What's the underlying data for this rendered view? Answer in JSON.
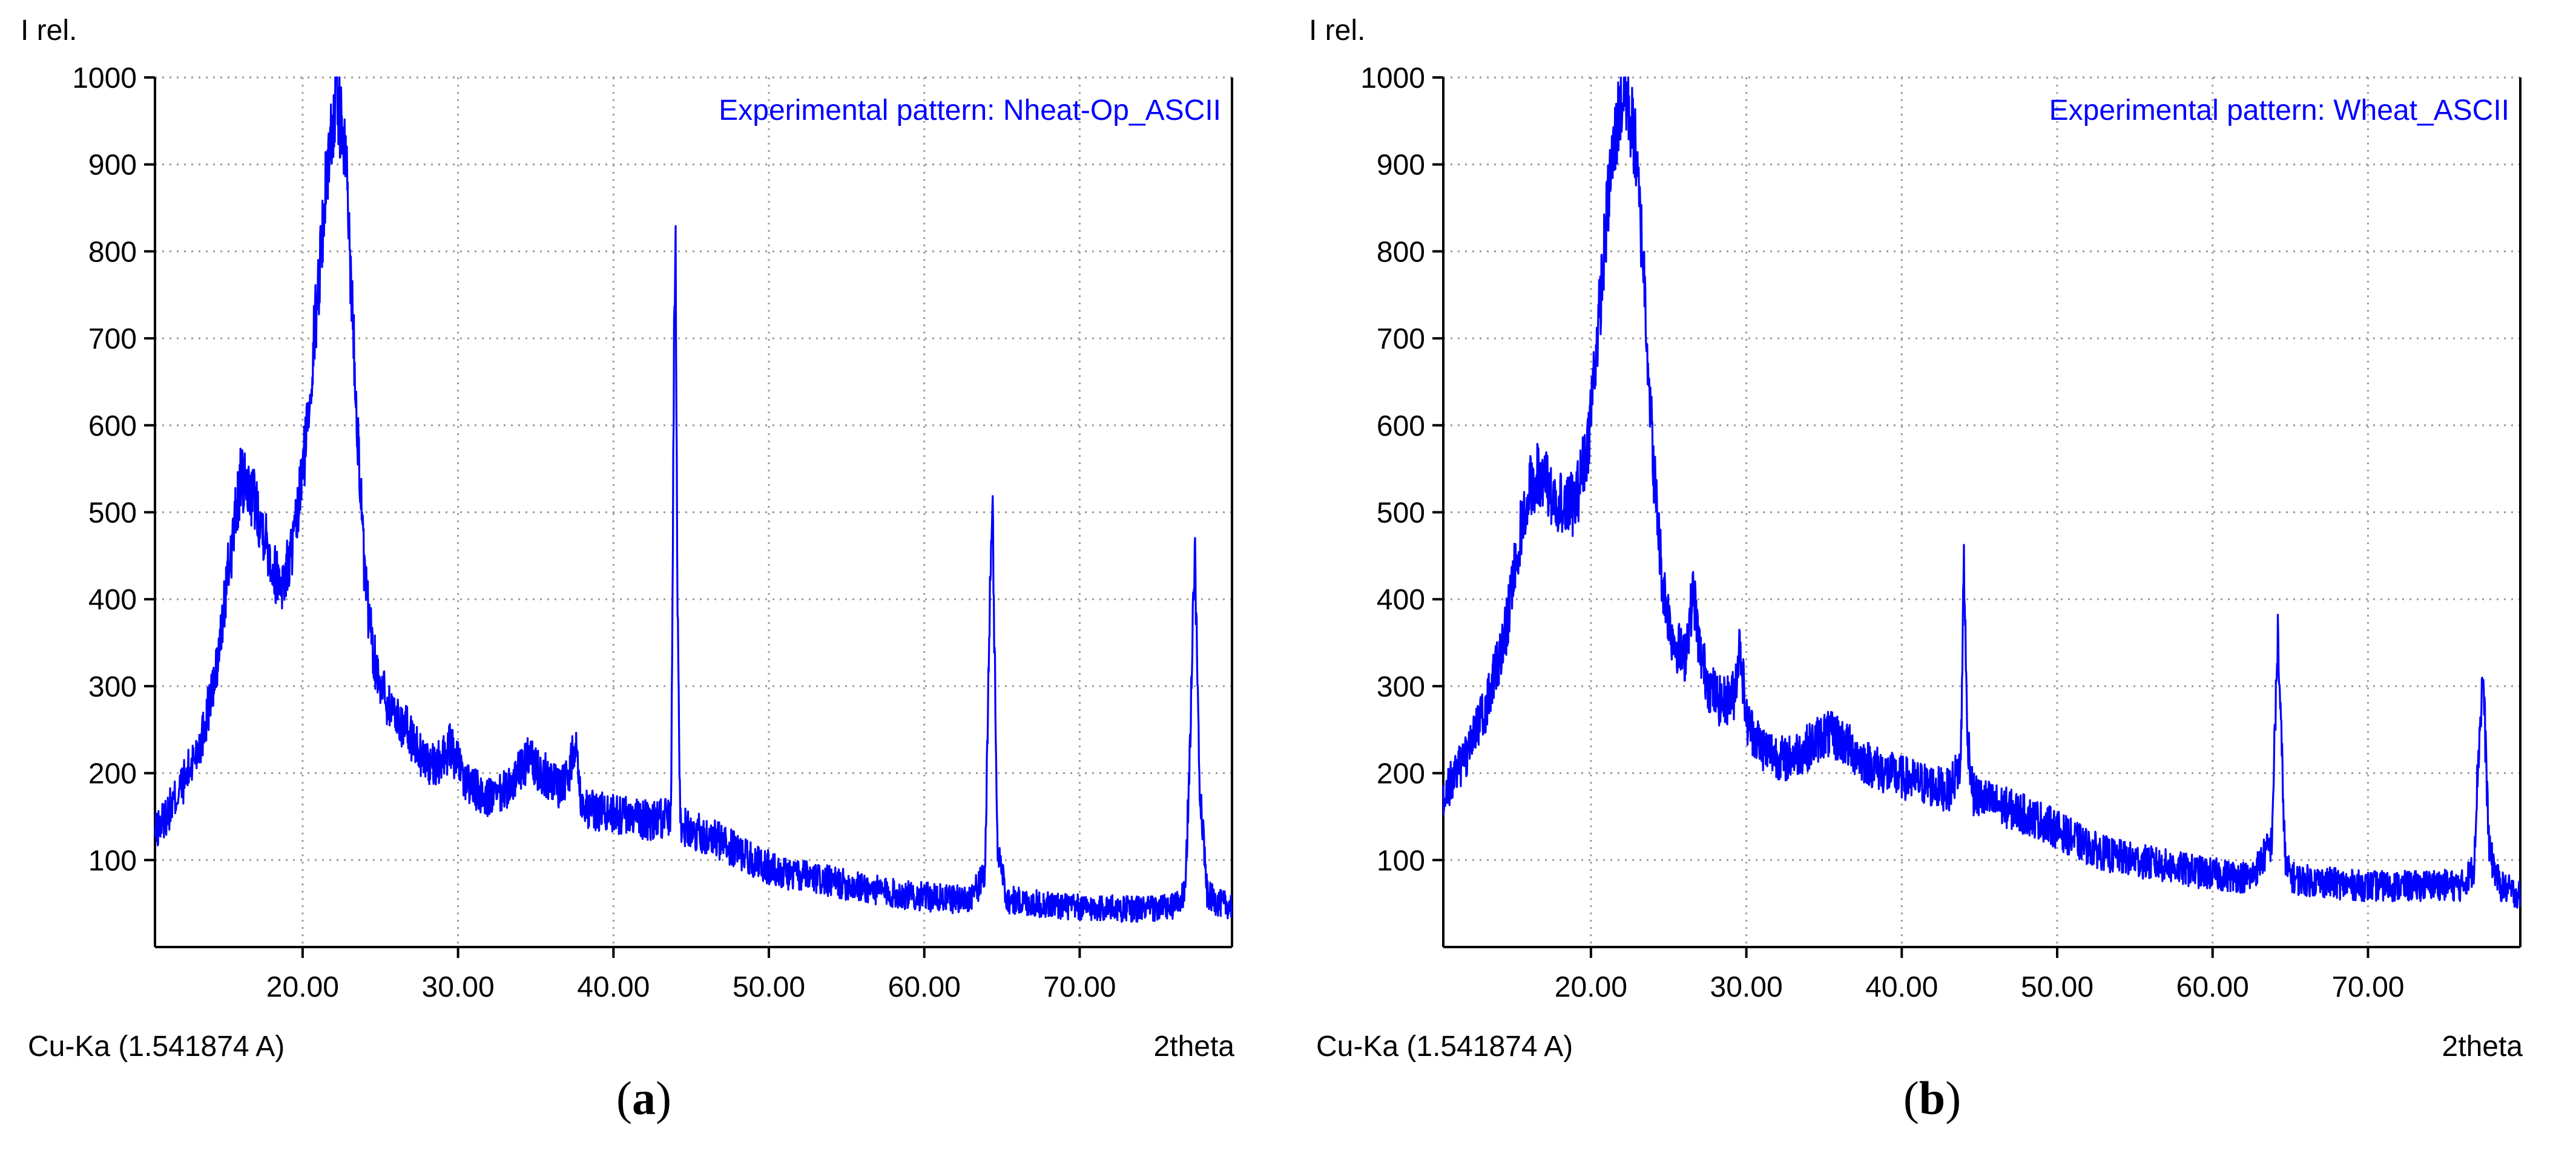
{
  "figures": [
    {
      "letter": "a",
      "chart_data": {
        "type": "line",
        "title": "",
        "legend_text": "Experimental pattern: Nheat-Op_ASCII",
        "legend_position": "top-right",
        "ylabel": "I rel.",
        "xlabel": "2theta",
        "radiation_label": "Cu-Ka (1.541874 A)",
        "xlim": [
          10.5,
          79.8
        ],
        "ylim": [
          0,
          1000
        ],
        "xticks": [
          20,
          30,
          40,
          50,
          60,
          70
        ],
        "xtick_labels": [
          "20.00",
          "30.00",
          "40.00",
          "50.00",
          "60.00",
          "70.00"
        ],
        "yticks": [
          100,
          200,
          300,
          400,
          500,
          600,
          700,
          800,
          900,
          1000
        ],
        "ytick_labels": [
          "100",
          "200",
          "300",
          "400",
          "500",
          "600",
          "700",
          "800",
          "900",
          "1000"
        ],
        "grid": true,
        "series_color": "#0000ff",
        "series": [
          {
            "x": [
              10.5,
              11.5,
              12.5,
              13.5,
              14.5,
              15.2,
              16.0,
              16.8,
              17.5,
              18.2,
              18.8,
              19.5,
              20.2,
              21.0,
              21.6,
              22.2,
              22.8,
              23.4,
              24.0,
              24.6,
              25.5,
              26.5,
              27.5,
              28.5,
              29.5,
              30.5,
              31.5,
              32.5,
              33.5,
              34.5,
              35.5,
              36.5,
              37.2,
              37.6,
              37.8,
              38.2,
              39.5,
              41.0,
              42.5,
              43.7,
              43.9,
              44.0,
              44.1,
              44.3,
              45.0,
              46.5,
              48.0,
              49.5,
              51.0,
              52.5,
              54.0,
              55.5,
              57.0,
              58.5,
              60.0,
              61.5,
              62.8,
              63.9,
              64.2,
              64.4,
              64.7,
              65.3,
              67.0,
              68.5,
              70.0,
              71.5,
              73.0,
              74.5,
              76.0,
              76.8,
              77.2,
              77.4,
              77.7,
              78.2,
              79.0,
              79.8
            ],
            "y": [
              130,
              160,
              195,
              240,
              320,
              430,
              535,
              520,
              480,
              430,
              420,
              470,
              580,
              760,
              900,
              980,
              900,
              650,
              420,
              330,
              280,
              255,
              225,
              205,
              230,
              190,
              175,
              170,
              190,
              215,
              200,
              185,
              200,
              250,
              180,
              160,
              155,
              150,
              145,
              150,
              700,
              830,
              450,
              140,
              135,
              125,
              110,
              95,
              85,
              80,
              75,
              70,
              65,
              60,
              58,
              55,
              55,
              80,
              380,
              495,
              120,
              55,
              50,
              48,
              45,
              45,
              44,
              44,
              46,
              60,
              300,
              465,
              200,
              60,
              50,
              48
            ]
          }
        ]
      }
    },
    {
      "letter": "b",
      "chart_data": {
        "type": "line",
        "title": "",
        "legend_text": "Experimental pattern: Wheat_ASCII",
        "legend_position": "top-right",
        "ylabel": "I rel.",
        "xlabel": "2theta",
        "radiation_label": "Cu-Ka (1.541874 A)",
        "xlim": [
          10.5,
          79.8
        ],
        "ylim": [
          0,
          1000
        ],
        "xticks": [
          20,
          30,
          40,
          50,
          60,
          70
        ],
        "xtick_labels": [
          "20.00",
          "30.00",
          "40.00",
          "50.00",
          "60.00",
          "70.00"
        ],
        "yticks": [
          100,
          200,
          300,
          400,
          500,
          600,
          700,
          800,
          900,
          1000
        ],
        "ytick_labels": [
          "100",
          "200",
          "300",
          "400",
          "500",
          "600",
          "700",
          "800",
          "900",
          "1000"
        ],
        "grid": true,
        "series_color": "#0000ff",
        "series": [
          {
            "x": [
              10.5,
              11.5,
              12.5,
              13.5,
              14.5,
              15.2,
              16.0,
              16.8,
              17.5,
              18.2,
              19.0,
              19.8,
              20.5,
              21.2,
              21.8,
              22.2,
              22.8,
              23.4,
              24.0,
              24.6,
              25.2,
              26.0,
              26.6,
              27.0,
              27.6,
              28.4,
              29.2,
              29.6,
              30.0,
              31.0,
              32.5,
              34.0,
              35.0,
              36.0,
              37.5,
              39.0,
              41.0,
              43.0,
              43.8,
              44.0,
              44.2,
              44.6,
              46.0,
              47.5,
              49.0,
              50.5,
              52.0,
              53.5,
              55.0,
              56.5,
              58.0,
              59.5,
              61.0,
              62.5,
              63.8,
              64.2,
              64.4,
              64.7,
              65.3,
              67.0,
              68.5,
              70.0,
              71.5,
              73.0,
              74.5,
              76.0,
              76.8,
              77.1,
              77.4,
              77.8,
              78.5,
              79.8
            ],
            "y": [
              175,
              205,
              240,
              290,
              360,
              450,
              530,
              545,
              520,
              510,
              510,
              580,
              720,
              880,
              960,
              985,
              930,
              780,
              560,
              420,
              360,
              330,
              410,
              340,
              300,
              280,
              290,
              350,
              260,
              230,
              215,
              230,
              245,
              240,
              215,
              200,
              190,
              180,
              210,
              455,
              250,
              175,
              165,
              155,
              145,
              130,
              115,
              105,
              100,
              95,
              90,
              85,
              82,
              80,
              120,
              360,
              250,
              90,
              78,
              75,
              72,
              70,
              70,
              70,
              72,
              70,
              90,
              220,
              315,
              110,
              70,
              60
            ]
          }
        ]
      }
    }
  ]
}
